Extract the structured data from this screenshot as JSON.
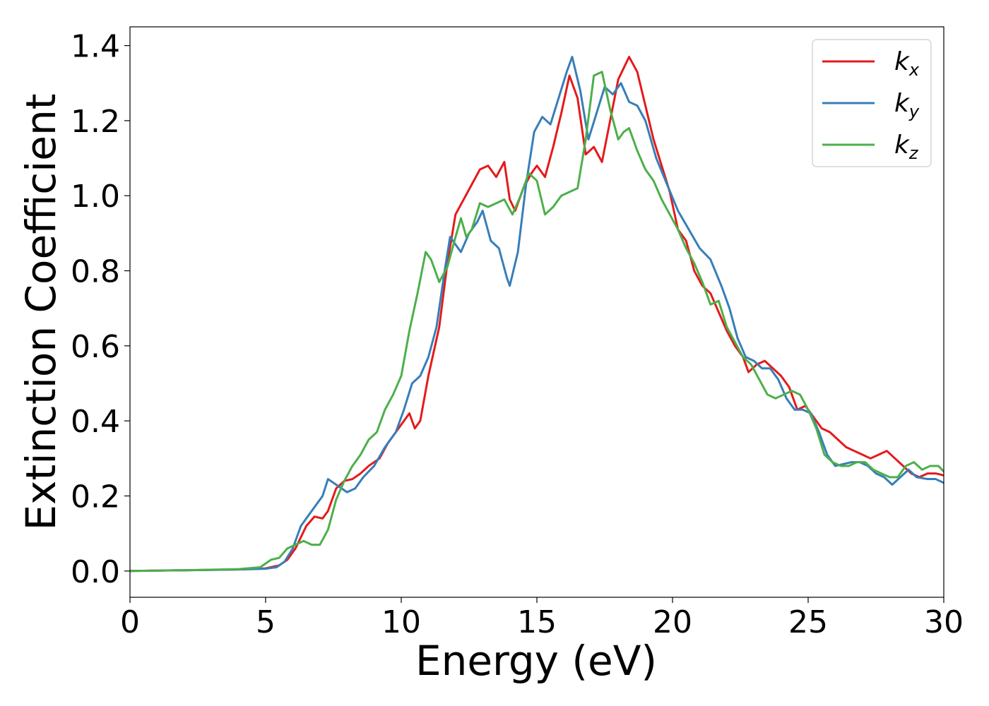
{
  "chart_data": {
    "type": "line",
    "xlabel": "Energy (eV)",
    "ylabel": "Extinction Coefficient",
    "xlim": [
      0,
      30
    ],
    "ylim": [
      -0.07,
      1.45
    ],
    "xticks": [
      0,
      5,
      10,
      15,
      20,
      25,
      30
    ],
    "xtick_labels": [
      "0",
      "5",
      "10",
      "15",
      "20",
      "25",
      "30"
    ],
    "yticks": [
      0.0,
      0.2,
      0.4,
      0.6,
      0.8,
      1.0,
      1.2,
      1.4
    ],
    "ytick_labels": [
      "0.0",
      "0.2",
      "0.4",
      "0.6",
      "0.8",
      "1.0",
      "1.2",
      "1.4"
    ],
    "grid": false,
    "legend_position": "top-right",
    "series": [
      {
        "name": "k",
        "subscript": "x",
        "color": "#e41a1c",
        "points": [
          [
            0,
            0
          ],
          [
            2,
            0.002
          ],
          [
            4,
            0.004
          ],
          [
            5,
            0.007
          ],
          [
            5.5,
            0.015
          ],
          [
            5.8,
            0.03
          ],
          [
            6.1,
            0.06
          ],
          [
            6.5,
            0.12
          ],
          [
            6.8,
            0.145
          ],
          [
            7.1,
            0.14
          ],
          [
            7.3,
            0.16
          ],
          [
            7.6,
            0.22
          ],
          [
            7.9,
            0.24
          ],
          [
            8.2,
            0.245
          ],
          [
            8.5,
            0.26
          ],
          [
            8.8,
            0.28
          ],
          [
            9.2,
            0.3
          ],
          [
            9.5,
            0.34
          ],
          [
            9.8,
            0.37
          ],
          [
            10.1,
            0.4
          ],
          [
            10.3,
            0.42
          ],
          [
            10.5,
            0.38
          ],
          [
            10.7,
            0.4
          ],
          [
            11.0,
            0.52
          ],
          [
            11.4,
            0.65
          ],
          [
            11.7,
            0.82
          ],
          [
            12.0,
            0.95
          ],
          [
            12.3,
            0.99
          ],
          [
            12.6,
            1.03
          ],
          [
            12.9,
            1.07
          ],
          [
            13.2,
            1.08
          ],
          [
            13.5,
            1.05
          ],
          [
            13.8,
            1.09
          ],
          [
            14.0,
            0.99
          ],
          [
            14.2,
            0.96
          ],
          [
            14.5,
            1.02
          ],
          [
            14.8,
            1.06
          ],
          [
            15.0,
            1.08
          ],
          [
            15.3,
            1.05
          ],
          [
            15.6,
            1.13
          ],
          [
            15.9,
            1.22
          ],
          [
            16.2,
            1.32
          ],
          [
            16.5,
            1.26
          ],
          [
            16.8,
            1.11
          ],
          [
            17.1,
            1.13
          ],
          [
            17.4,
            1.09
          ],
          [
            17.7,
            1.2
          ],
          [
            18.0,
            1.31
          ],
          [
            18.4,
            1.37
          ],
          [
            18.7,
            1.33
          ],
          [
            19.0,
            1.24
          ],
          [
            19.3,
            1.15
          ],
          [
            19.6,
            1.08
          ],
          [
            19.9,
            1.01
          ],
          [
            20.2,
            0.91
          ],
          [
            20.5,
            0.88
          ],
          [
            20.8,
            0.8
          ],
          [
            21.1,
            0.76
          ],
          [
            21.4,
            0.74
          ],
          [
            21.7,
            0.69
          ],
          [
            22.0,
            0.64
          ],
          [
            22.3,
            0.6
          ],
          [
            22.6,
            0.57
          ],
          [
            22.8,
            0.53
          ],
          [
            23.1,
            0.55
          ],
          [
            23.4,
            0.56
          ],
          [
            23.7,
            0.54
          ],
          [
            24.0,
            0.52
          ],
          [
            24.3,
            0.49
          ],
          [
            24.6,
            0.43
          ],
          [
            24.9,
            0.44
          ],
          [
            25.2,
            0.41
          ],
          [
            25.5,
            0.38
          ],
          [
            25.8,
            0.37
          ],
          [
            26.1,
            0.35
          ],
          [
            26.4,
            0.33
          ],
          [
            26.7,
            0.32
          ],
          [
            27.0,
            0.31
          ],
          [
            27.3,
            0.3
          ],
          [
            27.6,
            0.31
          ],
          [
            27.9,
            0.32
          ],
          [
            28.2,
            0.3
          ],
          [
            28.5,
            0.28
          ],
          [
            28.8,
            0.26
          ],
          [
            29.1,
            0.25
          ],
          [
            29.4,
            0.26
          ],
          [
            29.7,
            0.26
          ],
          [
            30.0,
            0.255
          ]
        ]
      },
      {
        "name": "k",
        "subscript": "y",
        "color": "#377eb8",
        "points": [
          [
            0,
            0
          ],
          [
            2,
            0.002
          ],
          [
            4,
            0.004
          ],
          [
            5,
            0.006
          ],
          [
            5.4,
            0.01
          ],
          [
            5.7,
            0.025
          ],
          [
            6.0,
            0.06
          ],
          [
            6.3,
            0.12
          ],
          [
            6.6,
            0.15
          ],
          [
            6.9,
            0.18
          ],
          [
            7.1,
            0.2
          ],
          [
            7.3,
            0.245
          ],
          [
            7.6,
            0.23
          ],
          [
            8.0,
            0.21
          ],
          [
            8.3,
            0.22
          ],
          [
            8.6,
            0.25
          ],
          [
            9.0,
            0.28
          ],
          [
            9.4,
            0.33
          ],
          [
            9.8,
            0.37
          ],
          [
            10.1,
            0.43
          ],
          [
            10.4,
            0.5
          ],
          [
            10.7,
            0.52
          ],
          [
            11.0,
            0.57
          ],
          [
            11.3,
            0.65
          ],
          [
            11.6,
            0.8
          ],
          [
            11.8,
            0.89
          ],
          [
            12.0,
            0.87
          ],
          [
            12.2,
            0.85
          ],
          [
            12.5,
            0.9
          ],
          [
            12.8,
            0.93
          ],
          [
            13.0,
            0.96
          ],
          [
            13.3,
            0.88
          ],
          [
            13.6,
            0.86
          ],
          [
            13.9,
            0.78
          ],
          [
            14.0,
            0.76
          ],
          [
            14.3,
            0.85
          ],
          [
            14.6,
            1.03
          ],
          [
            14.9,
            1.17
          ],
          [
            15.2,
            1.21
          ],
          [
            15.5,
            1.19
          ],
          [
            15.8,
            1.26
          ],
          [
            16.1,
            1.33
          ],
          [
            16.3,
            1.37
          ],
          [
            16.6,
            1.28
          ],
          [
            16.9,
            1.15
          ],
          [
            17.2,
            1.22
          ],
          [
            17.5,
            1.29
          ],
          [
            17.8,
            1.27
          ],
          [
            18.1,
            1.3
          ],
          [
            18.4,
            1.25
          ],
          [
            18.7,
            1.24
          ],
          [
            19.0,
            1.2
          ],
          [
            19.4,
            1.1
          ],
          [
            19.8,
            1.03
          ],
          [
            20.2,
            0.96
          ],
          [
            20.6,
            0.91
          ],
          [
            21.0,
            0.86
          ],
          [
            21.4,
            0.83
          ],
          [
            21.8,
            0.76
          ],
          [
            22.1,
            0.7
          ],
          [
            22.4,
            0.62
          ],
          [
            22.7,
            0.57
          ],
          [
            23.0,
            0.56
          ],
          [
            23.3,
            0.54
          ],
          [
            23.6,
            0.54
          ],
          [
            23.9,
            0.51
          ],
          [
            24.2,
            0.46
          ],
          [
            24.5,
            0.43
          ],
          [
            24.8,
            0.43
          ],
          [
            25.1,
            0.42
          ],
          [
            25.4,
            0.37
          ],
          [
            25.7,
            0.31
          ],
          [
            26.0,
            0.28
          ],
          [
            26.3,
            0.285
          ],
          [
            26.6,
            0.29
          ],
          [
            26.9,
            0.29
          ],
          [
            27.2,
            0.28
          ],
          [
            27.5,
            0.26
          ],
          [
            27.8,
            0.25
          ],
          [
            28.1,
            0.23
          ],
          [
            28.4,
            0.25
          ],
          [
            28.7,
            0.27
          ],
          [
            29.0,
            0.25
          ],
          [
            29.4,
            0.245
          ],
          [
            29.7,
            0.245
          ],
          [
            30.0,
            0.235
          ]
        ]
      },
      {
        "name": "k",
        "subscript": "z",
        "color": "#4daf4a",
        "points": [
          [
            0,
            0
          ],
          [
            2,
            0.002
          ],
          [
            4,
            0.005
          ],
          [
            4.8,
            0.01
          ],
          [
            5.2,
            0.03
          ],
          [
            5.5,
            0.035
          ],
          [
            5.8,
            0.06
          ],
          [
            6.1,
            0.07
          ],
          [
            6.4,
            0.08
          ],
          [
            6.7,
            0.07
          ],
          [
            7.0,
            0.07
          ],
          [
            7.3,
            0.11
          ],
          [
            7.6,
            0.19
          ],
          [
            7.9,
            0.24
          ],
          [
            8.2,
            0.28
          ],
          [
            8.5,
            0.31
          ],
          [
            8.8,
            0.35
          ],
          [
            9.1,
            0.37
          ],
          [
            9.4,
            0.43
          ],
          [
            9.7,
            0.47
          ],
          [
            10.0,
            0.52
          ],
          [
            10.3,
            0.64
          ],
          [
            10.6,
            0.74
          ],
          [
            10.9,
            0.85
          ],
          [
            11.1,
            0.83
          ],
          [
            11.4,
            0.77
          ],
          [
            11.7,
            0.81
          ],
          [
            12.0,
            0.89
          ],
          [
            12.2,
            0.94
          ],
          [
            12.4,
            0.89
          ],
          [
            12.6,
            0.91
          ],
          [
            12.9,
            0.98
          ],
          [
            13.2,
            0.97
          ],
          [
            13.5,
            0.98
          ],
          [
            13.8,
            0.99
          ],
          [
            14.1,
            0.95
          ],
          [
            14.4,
            1.0
          ],
          [
            14.7,
            1.06
          ],
          [
            15.0,
            1.04
          ],
          [
            15.3,
            0.95
          ],
          [
            15.6,
            0.97
          ],
          [
            15.9,
            1.0
          ],
          [
            16.2,
            1.01
          ],
          [
            16.5,
            1.02
          ],
          [
            16.8,
            1.15
          ],
          [
            17.1,
            1.32
          ],
          [
            17.4,
            1.33
          ],
          [
            17.7,
            1.23
          ],
          [
            18.0,
            1.15
          ],
          [
            18.2,
            1.17
          ],
          [
            18.4,
            1.18
          ],
          [
            18.7,
            1.12
          ],
          [
            19.0,
            1.07
          ],
          [
            19.3,
            1.04
          ],
          [
            19.6,
            0.99
          ],
          [
            19.9,
            0.95
          ],
          [
            20.2,
            0.91
          ],
          [
            20.5,
            0.86
          ],
          [
            20.8,
            0.82
          ],
          [
            21.1,
            0.77
          ],
          [
            21.4,
            0.71
          ],
          [
            21.7,
            0.72
          ],
          [
            22.0,
            0.65
          ],
          [
            22.3,
            0.61
          ],
          [
            22.6,
            0.57
          ],
          [
            22.9,
            0.55
          ],
          [
            23.2,
            0.51
          ],
          [
            23.5,
            0.47
          ],
          [
            23.8,
            0.46
          ],
          [
            24.1,
            0.47
          ],
          [
            24.4,
            0.48
          ],
          [
            24.7,
            0.47
          ],
          [
            25.0,
            0.43
          ],
          [
            25.3,
            0.38
          ],
          [
            25.6,
            0.31
          ],
          [
            25.9,
            0.29
          ],
          [
            26.2,
            0.28
          ],
          [
            26.5,
            0.28
          ],
          [
            26.8,
            0.29
          ],
          [
            27.1,
            0.29
          ],
          [
            27.4,
            0.27
          ],
          [
            27.7,
            0.26
          ],
          [
            28.0,
            0.25
          ],
          [
            28.3,
            0.25
          ],
          [
            28.6,
            0.28
          ],
          [
            28.9,
            0.29
          ],
          [
            29.2,
            0.27
          ],
          [
            29.5,
            0.28
          ],
          [
            29.8,
            0.28
          ],
          [
            30.0,
            0.265
          ]
        ]
      }
    ]
  }
}
